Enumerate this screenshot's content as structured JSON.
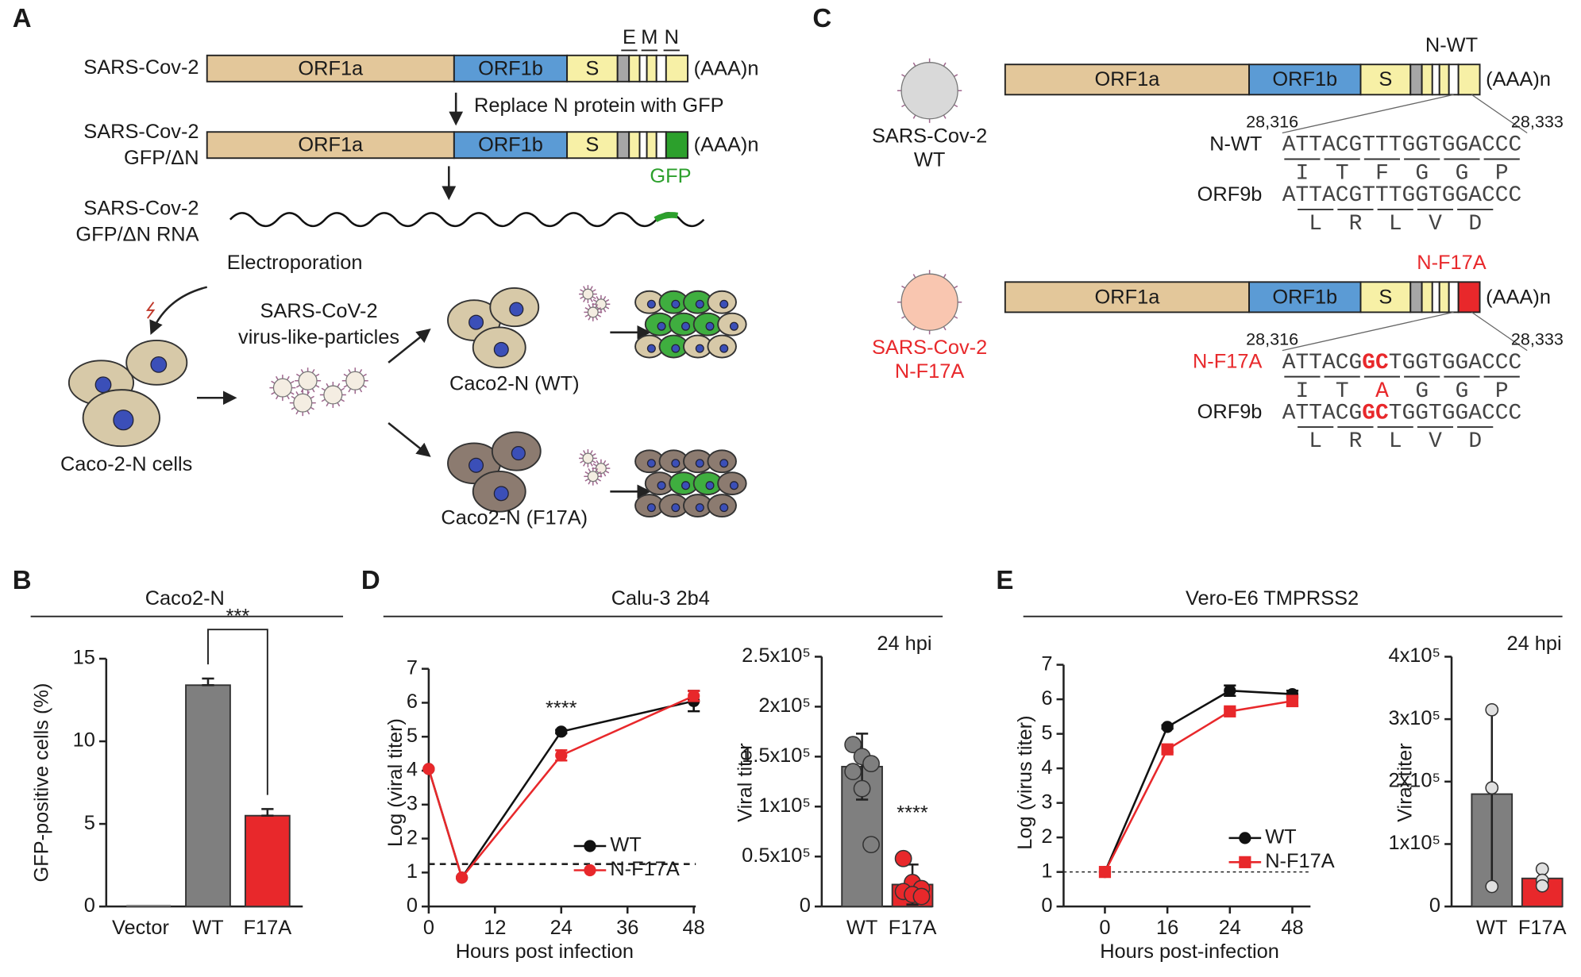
{
  "panel_labels": [
    "A",
    "B",
    "C",
    "D",
    "E"
  ],
  "genome": {
    "segments": [
      "ORF1a",
      "ORF1b",
      "S"
    ],
    "tail": "(AAA)n"
  },
  "panel_a": {
    "wt_label": "SARS-Cov-2",
    "gene_marks": [
      "E",
      "M",
      "N"
    ],
    "step1": "Replace N protein with GFP",
    "gfp_label": [
      "SARS-Cov-2",
      "GFP/ΔN"
    ],
    "gfp": "GFP",
    "rna_label": [
      "SARS-Cov-2",
      "GFP/ΔN RNA"
    ],
    "electroporation": "Electroporation",
    "vlp": [
      "SARS-CoV-2",
      "virus-like-particles"
    ],
    "cells": "Caco-2-N cells",
    "wt_cells": "Caco2-N (WT)",
    "f17a_cells": "Caco2-N (F17A)"
  },
  "panel_c": {
    "start": "28,316",
    "end": "28,333",
    "highlight_color": "#e8282b",
    "wt": {
      "virus": [
        "SARS-Cov-2",
        "WT"
      ],
      "marker": "N-WT",
      "rows": [
        {
          "name": "N-WT",
          "seq": [
            "ATTACGTTTGGTGGACCC"
          ],
          "aa": [
            "I",
            "T",
            "F",
            "G",
            "G",
            "P"
          ]
        },
        {
          "name": "ORF9b",
          "seq": [
            "ATTACGTTTGGTGGACCC"
          ],
          "aa": [
            "L",
            "R",
            "L",
            "V",
            "D"
          ]
        }
      ]
    },
    "mut": {
      "virus": [
        "SARS-Cov-2",
        "N-F17A"
      ],
      "marker": "N-F17A",
      "rows": [
        {
          "name": "N-F17A",
          "seq": [
            "ATTACG",
            "GC",
            "TGGTGGACCC"
          ],
          "aa": [
            "I",
            "T",
            "A",
            "G",
            "G",
            "P"
          ]
        },
        {
          "name": "ORF9b",
          "seq": [
            "ATTACG",
            "GC",
            "TGGTGGACCC"
          ],
          "aa": [
            "L",
            "R",
            "L",
            "V",
            "D"
          ]
        }
      ]
    }
  },
  "chart_data": [
    {
      "type": "bar",
      "title": "Caco2-N",
      "y_label": "GFP-positive cells (%)",
      "categories": [
        "Vector",
        "WT",
        "F17A"
      ],
      "values": [
        0.1,
        13.4,
        5.5
      ],
      "errors": [
        0,
        0.4,
        0.4
      ],
      "colors": [
        "#7f7f7f",
        "#7f7f7f",
        "#e8282b"
      ],
      "annotation": "***",
      "ylim": [
        0,
        15
      ],
      "yticks": [
        0,
        5,
        10,
        15
      ]
    },
    {
      "type": "line",
      "title": "Calu-3 2b4",
      "x_label": "Hours post infection",
      "y_label": "Log (viral titer)",
      "x": [
        0,
        6,
        24,
        48
      ],
      "series": [
        {
          "name": "WT",
          "color": "#111111",
          "marker": "circle",
          "values": [
            4.05,
            0.85,
            5.15,
            6.05
          ],
          "errors": [
            0,
            0,
            0.05,
            0.3
          ]
        },
        {
          "name": "N-F17A",
          "color": "#e8282b",
          "marker": "circle",
          "values": [
            4.05,
            0.85,
            4.45,
            6.2
          ],
          "errors": [
            0,
            0,
            0.15,
            0.15
          ]
        }
      ],
      "reference_line": 1.25,
      "annotation": "****",
      "xlim": [
        0,
        48
      ],
      "xticks": [
        0,
        12,
        24,
        36,
        48
      ],
      "ylim": [
        0,
        7
      ],
      "yticks": [
        0,
        1,
        2,
        3,
        4,
        5,
        6,
        7
      ]
    },
    {
      "type": "dotbar",
      "y_label": "Viral titer",
      "annotation": "24 hpi",
      "significance": "****",
      "categories": [
        "WT",
        "F17A"
      ],
      "values": [
        140000,
        22000
      ],
      "errors": [
        33000,
        20000
      ],
      "points": [
        [
          162000,
          150000,
          143000,
          135000,
          118000,
          62000
        ],
        [
          48000,
          24000,
          18000,
          15000,
          12000,
          10000
        ]
      ],
      "colors": [
        "#7f7f7f",
        "#e8282b"
      ],
      "ylim": [
        0,
        250000
      ],
      "yticks": [
        0,
        {
          "value": 50000,
          "label": "0.5x10⁵"
        },
        {
          "value": 100000,
          "label": "1x10⁵"
        },
        {
          "value": 150000,
          "label": "1.5x10⁵"
        },
        {
          "value": 200000,
          "label": "2x10⁵"
        },
        {
          "value": 250000,
          "label": "2.5x10⁵"
        }
      ]
    },
    {
      "type": "line",
      "title": "Vero-E6 TMPRSS2",
      "x_label": "Hours post-infection",
      "y_label": "Log (virus titer)",
      "categories": [
        "0",
        "16",
        "24",
        "48"
      ],
      "series": [
        {
          "name": "WT",
          "color": "#111111",
          "marker": "circle",
          "values": [
            1.0,
            5.2,
            6.25,
            6.15
          ],
          "errors": [
            0,
            0.05,
            0.15,
            0.1
          ]
        },
        {
          "name": "N-F17A",
          "color": "#e8282b",
          "marker": "square",
          "values": [
            1.0,
            4.55,
            5.65,
            5.95
          ],
          "errors": [
            0,
            0.08,
            0.08,
            0.15
          ]
        }
      ],
      "reference_line": 1.0,
      "ylim": [
        0,
        7
      ],
      "yticks": [
        0,
        1,
        2,
        3,
        4,
        5,
        6,
        7
      ]
    },
    {
      "type": "rangebar",
      "y_label": "Viral titer",
      "annotation": "24 hpi",
      "categories": [
        "WT",
        "F17A"
      ],
      "values": [
        180000,
        45000
      ],
      "range": [
        [
          30000,
          315000
        ],
        [
          30000,
          62000
        ]
      ],
      "points": [
        [
          315000,
          190000,
          32000
        ],
        [
          60000,
          42000,
          33000
        ]
      ],
      "colors": [
        "#7f7f7f",
        "#e8282b"
      ],
      "ylim": [
        0,
        400000
      ],
      "yticks": [
        0,
        {
          "value": 100000,
          "label": "1x10⁵"
        },
        {
          "value": 200000,
          "label": "2x10⁵"
        },
        {
          "value": 300000,
          "label": "3x10⁵"
        },
        {
          "value": 400000,
          "label": "4x10⁵"
        }
      ]
    }
  ]
}
